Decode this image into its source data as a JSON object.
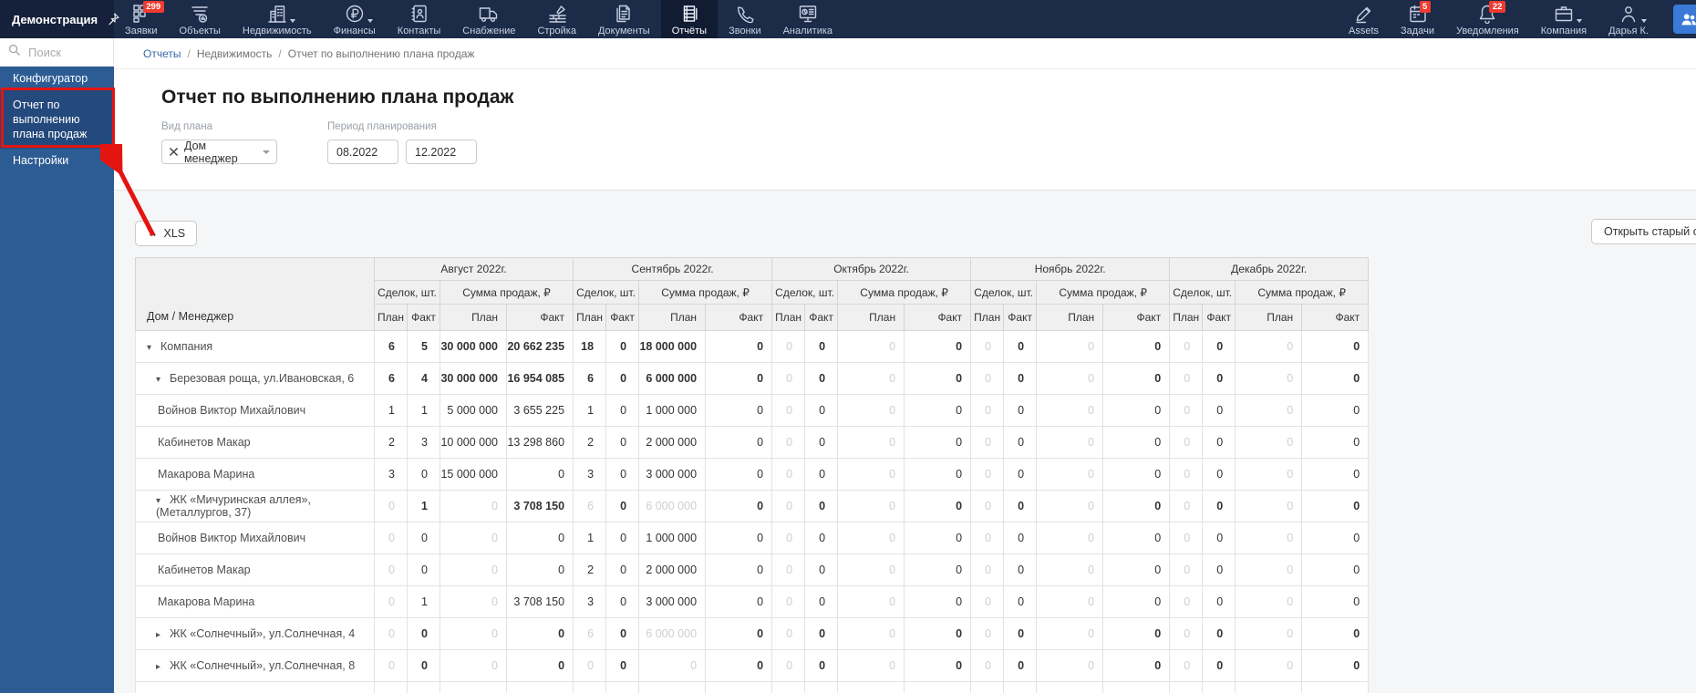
{
  "colors": {
    "topbar_bg": "#1c2b48",
    "topbar_logo_bg": "#15203a",
    "sidebar_bg": "#2d5c94",
    "sidebar_active_bg": "#24497c",
    "badge_red": "#ef3b30",
    "annotation_red": "#e41511",
    "accent_blue": "#3a79d8",
    "link_blue": "#3a66a8"
  },
  "topbar": {
    "workspace": "Демонстрация",
    "nav": [
      {
        "label": "Заявки",
        "icon": "grid",
        "badge": "299"
      },
      {
        "label": "Объекты",
        "icon": "objects"
      },
      {
        "label": "Недвижимость",
        "icon": "building",
        "caret": true
      },
      {
        "label": "Финансы",
        "icon": "ruble",
        "caret": true
      },
      {
        "label": "Контакты",
        "icon": "contacts"
      },
      {
        "label": "Снабжение",
        "icon": "truck"
      },
      {
        "label": "Стройка",
        "icon": "construction"
      },
      {
        "label": "Документы",
        "icon": "documents"
      },
      {
        "label": "Отчёты",
        "icon": "report",
        "active": true
      },
      {
        "label": "Звонки",
        "icon": "phone"
      },
      {
        "label": "Аналитика",
        "icon": "analytics"
      }
    ],
    "right": [
      {
        "label": "Assets",
        "icon": "pencil"
      },
      {
        "label": "Задачи",
        "icon": "calendar",
        "badge": "5"
      },
      {
        "label": "Уведомления",
        "icon": "bell",
        "badge": "22"
      },
      {
        "label": "Компания",
        "icon": "briefcase",
        "caret": true
      },
      {
        "label": "Дарья К.",
        "icon": "person",
        "caret": true
      }
    ]
  },
  "sidebar": {
    "search_placeholder": "Поиск",
    "items": [
      {
        "label": "Конфигуратор"
      },
      {
        "label": "Отчет по выполнению плана продаж",
        "active": true,
        "annotated": true
      },
      {
        "label": "Настройки"
      }
    ]
  },
  "breadcrumb": [
    "Отчеты",
    "Недвижимость",
    "Отчет по выполнению плана продаж"
  ],
  "page": {
    "title": "Отчет по выполнению плана продаж",
    "filters": {
      "plan_type_label": "Вид плана",
      "plan_type_value": "Дом менеджер",
      "period_label": "Период планирования",
      "period_from": "08.2022",
      "period_to": "12.2022"
    },
    "xls_icon": "→",
    "xls_label": "XLS",
    "open_old_label": "Открыть старый о"
  },
  "table": {
    "name_header": "Дом / Менеджер",
    "months": [
      "Август 2022г.",
      "Сентябрь 2022г.",
      "Октябрь 2022г.",
      "Ноябрь 2022г.",
      "Декабрь 2022г."
    ],
    "metric_headers": [
      "Сделок, шт.",
      "Сумма продаж, ₽"
    ],
    "plan_fact_headers": [
      "План",
      "Факт"
    ],
    "rows": [
      {
        "name": "Компания",
        "kind": "group",
        "level": 1,
        "state": "expanded",
        "cells": [
          "6",
          "5",
          "30 000 000",
          "20 662 235",
          "18",
          "0",
          "18 000 000",
          "0",
          {
            "v": "0",
            "muted": true
          },
          "0",
          {
            "v": "0",
            "muted": true
          },
          "0",
          {
            "v": "0",
            "muted": true
          },
          "0",
          {
            "v": "0",
            "muted": true
          },
          "0",
          {
            "v": "0",
            "muted": true
          },
          "0",
          {
            "v": "0",
            "muted": true
          },
          "0"
        ]
      },
      {
        "name": "Березовая роща, ул.Ивановская, 6",
        "kind": "group",
        "level": 2,
        "state": "expanded",
        "cells": [
          "6",
          "4",
          "30 000 000",
          "16 954 085",
          "6",
          "0",
          "6 000 000",
          "0",
          {
            "v": "0",
            "muted": true
          },
          "0",
          {
            "v": "0",
            "muted": true
          },
          "0",
          {
            "v": "0",
            "muted": true
          },
          "0",
          {
            "v": "0",
            "muted": true
          },
          "0",
          {
            "v": "0",
            "muted": true
          },
          "0",
          {
            "v": "0",
            "muted": true
          },
          "0"
        ]
      },
      {
        "name": "Войнов Виктор Михайлович",
        "kind": "leaf",
        "cells": [
          "1",
          "1",
          "5 000 000",
          "3 655 225",
          "1",
          "0",
          "1 000 000",
          "0",
          {
            "v": "0",
            "muted": true
          },
          "0",
          {
            "v": "0",
            "muted": true
          },
          "0",
          {
            "v": "0",
            "muted": true
          },
          "0",
          {
            "v": "0",
            "muted": true
          },
          "0",
          {
            "v": "0",
            "muted": true
          },
          "0",
          {
            "v": "0",
            "muted": true
          },
          "0"
        ]
      },
      {
        "name": "Кабинетов Макар",
        "kind": "leaf",
        "cells": [
          "2",
          "3",
          "10 000 000",
          "13 298 860",
          "2",
          "0",
          "2 000 000",
          "0",
          {
            "v": "0",
            "muted": true
          },
          "0",
          {
            "v": "0",
            "muted": true
          },
          "0",
          {
            "v": "0",
            "muted": true
          },
          "0",
          {
            "v": "0",
            "muted": true
          },
          "0",
          {
            "v": "0",
            "muted": true
          },
          "0",
          {
            "v": "0",
            "muted": true
          },
          "0"
        ]
      },
      {
        "name": "Макарова Марина",
        "kind": "leaf",
        "cells": [
          "3",
          "0",
          "15 000 000",
          "0",
          "3",
          "0",
          "3 000 000",
          "0",
          {
            "v": "0",
            "muted": true
          },
          "0",
          {
            "v": "0",
            "muted": true
          },
          "0",
          {
            "v": "0",
            "muted": true
          },
          "0",
          {
            "v": "0",
            "muted": true
          },
          "0",
          {
            "v": "0",
            "muted": true
          },
          "0",
          {
            "v": "0",
            "muted": true
          },
          "0"
        ]
      },
      {
        "name": "ЖК «Мичуринская аллея», (Металлургов, 37)",
        "kind": "group",
        "level": 2,
        "state": "expanded",
        "cells": [
          {
            "v": "0",
            "muted": true
          },
          "1",
          {
            "v": "0",
            "muted": true
          },
          "3 708 150",
          {
            "v": "6",
            "muted": true
          },
          "0",
          {
            "v": "6 000 000",
            "muted": true
          },
          "0",
          {
            "v": "0",
            "muted": true
          },
          "0",
          {
            "v": "0",
            "muted": true
          },
          "0",
          {
            "v": "0",
            "muted": true
          },
          "0",
          {
            "v": "0",
            "muted": true
          },
          "0",
          {
            "v": "0",
            "muted": true
          },
          "0",
          {
            "v": "0",
            "muted": true
          },
          "0"
        ]
      },
      {
        "name": "Войнов Виктор Михайлович",
        "kind": "leaf",
        "cells": [
          {
            "v": "0",
            "muted": true
          },
          "0",
          {
            "v": "0",
            "muted": true
          },
          "0",
          "1",
          "0",
          "1 000 000",
          "0",
          {
            "v": "0",
            "muted": true
          },
          "0",
          {
            "v": "0",
            "muted": true
          },
          "0",
          {
            "v": "0",
            "muted": true
          },
          "0",
          {
            "v": "0",
            "muted": true
          },
          "0",
          {
            "v": "0",
            "muted": true
          },
          "0",
          {
            "v": "0",
            "muted": true
          },
          "0"
        ]
      },
      {
        "name": "Кабинетов Макар",
        "kind": "leaf",
        "cells": [
          {
            "v": "0",
            "muted": true
          },
          "0",
          {
            "v": "0",
            "muted": true
          },
          "0",
          "2",
          "0",
          "2 000 000",
          "0",
          {
            "v": "0",
            "muted": true
          },
          "0",
          {
            "v": "0",
            "muted": true
          },
          "0",
          {
            "v": "0",
            "muted": true
          },
          "0",
          {
            "v": "0",
            "muted": true
          },
          "0",
          {
            "v": "0",
            "muted": true
          },
          "0",
          {
            "v": "0",
            "muted": true
          },
          "0"
        ]
      },
      {
        "name": "Макарова Марина",
        "kind": "leaf",
        "cells": [
          {
            "v": "0",
            "muted": true
          },
          "1",
          {
            "v": "0",
            "muted": true
          },
          "3 708 150",
          "3",
          "0",
          "3 000 000",
          "0",
          {
            "v": "0",
            "muted": true
          },
          "0",
          {
            "v": "0",
            "muted": true
          },
          "0",
          {
            "v": "0",
            "muted": true
          },
          "0",
          {
            "v": "0",
            "muted": true
          },
          "0",
          {
            "v": "0",
            "muted": true
          },
          "0",
          {
            "v": "0",
            "muted": true
          },
          "0"
        ]
      },
      {
        "name": "ЖК «Солнечный», ул.Солнечная, 4",
        "kind": "group",
        "level": 2,
        "state": "collapsed",
        "cells": [
          {
            "v": "0",
            "muted": true
          },
          "0",
          {
            "v": "0",
            "muted": true
          },
          "0",
          {
            "v": "6",
            "muted": true
          },
          "0",
          {
            "v": "6 000 000",
            "muted": true
          },
          "0",
          {
            "v": "0",
            "muted": true
          },
          "0",
          {
            "v": "0",
            "muted": true
          },
          "0",
          {
            "v": "0",
            "muted": true
          },
          "0",
          {
            "v": "0",
            "muted": true
          },
          "0",
          {
            "v": "0",
            "muted": true
          },
          "0",
          {
            "v": "0",
            "muted": true
          },
          "0"
        ]
      },
      {
        "name": "ЖК «Солнечный», ул.Солнечная, 8",
        "kind": "group",
        "level": 2,
        "state": "collapsed",
        "cells": [
          {
            "v": "0",
            "muted": true
          },
          "0",
          {
            "v": "0",
            "muted": true
          },
          "0",
          {
            "v": "0",
            "muted": true
          },
          "0",
          {
            "v": "0",
            "muted": true
          },
          "0",
          {
            "v": "0",
            "muted": true
          },
          "0",
          {
            "v": "0",
            "muted": true
          },
          "0",
          {
            "v": "0",
            "muted": true
          },
          "0",
          {
            "v": "0",
            "muted": true
          },
          "0",
          {
            "v": "0",
            "muted": true
          },
          "0",
          {
            "v": "0",
            "muted": true
          },
          "0"
        ]
      }
    ]
  }
}
